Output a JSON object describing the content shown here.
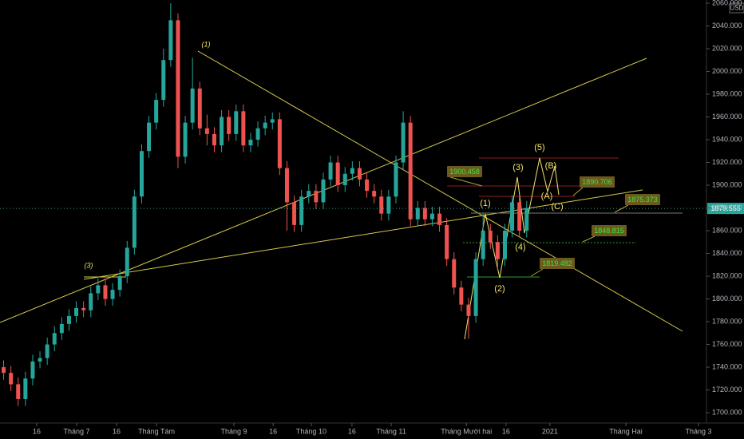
{
  "chart_data": {
    "type": "candlestick",
    "currency": "USD",
    "up_color": "#26a69a",
    "down_color": "#ef5350",
    "x": [
      1,
      3,
      5,
      7,
      9,
      11,
      13,
      15,
      17,
      19,
      21,
      23,
      25,
      27,
      29,
      31,
      33,
      35,
      37,
      39,
      41,
      43,
      45,
      47,
      49,
      51,
      53,
      55,
      57,
      59,
      61,
      63,
      65,
      67,
      69,
      71,
      73,
      75,
      77,
      79,
      81,
      83,
      85,
      87,
      89,
      91,
      93,
      95,
      97,
      99,
      101,
      103,
      105,
      107,
      109,
      111,
      113,
      115,
      117,
      119,
      121,
      123,
      125,
      127,
      129,
      131,
      133,
      135,
      137,
      139,
      141,
      143,
      145
    ],
    "open": [
      1740,
      1735,
      1725,
      1712,
      1730,
      1745,
      1748,
      1760,
      1770,
      1778,
      1785,
      1792,
      1790,
      1805,
      1812,
      1800,
      1808,
      1820,
      1845,
      1890,
      1930,
      1955,
      1975,
      2010,
      2045,
      1925,
      1955,
      1985,
      1950,
      1945,
      1935,
      1960,
      1945,
      1965,
      1935,
      1940,
      1950,
      1955,
      1958,
      1915,
      1885,
      1865,
      1890,
      1895,
      1885,
      1905,
      1920,
      1900,
      1910,
      1915,
      1905,
      1895,
      1890,
      1875,
      1890,
      1920,
      1955,
      1870,
      1880,
      1870,
      1875,
      1865,
      1835,
      1810,
      1795,
      1785,
      1835,
      1860,
      1850,
      1835,
      1860,
      1885,
      1860
    ],
    "high": [
      1746,
      1741,
      1731,
      1736,
      1751,
      1754,
      1766,
      1776,
      1784,
      1791,
      1798,
      1798,
      1811,
      1818,
      1818,
      1814,
      1826,
      1851,
      1896,
      1936,
      1961,
      1981,
      2020,
      2060,
      2051,
      1961,
      2012,
      1991,
      1962,
      1951,
      1966,
      1966,
      1971,
      1971,
      1946,
      1956,
      1961,
      1964,
      1964,
      1921,
      1891,
      1896,
      1901,
      1901,
      1911,
      1926,
      1926,
      1916,
      1921,
      1921,
      1911,
      1901,
      1896,
      1896,
      1926,
      1965,
      1961,
      1886,
      1886,
      1881,
      1881,
      1871,
      1841,
      1816,
      1801,
      1841,
      1875,
      1866,
      1856,
      1866,
      1891,
      1891,
      1886
    ],
    "low": [
      1729,
      1719,
      1706,
      1706,
      1724,
      1739,
      1742,
      1754,
      1764,
      1772,
      1779,
      1784,
      1784,
      1799,
      1794,
      1794,
      1802,
      1814,
      1839,
      1884,
      1924,
      1949,
      1969,
      2004,
      1915,
      1919,
      1949,
      1944,
      1935,
      1929,
      1929,
      1939,
      1939,
      1929,
      1929,
      1934,
      1944,
      1949,
      1909,
      1860,
      1859,
      1859,
      1884,
      1879,
      1879,
      1899,
      1894,
      1894,
      1904,
      1899,
      1889,
      1884,
      1869,
      1869,
      1884,
      1914,
      1864,
      1864,
      1864,
      1864,
      1859,
      1829,
      1804,
      1789,
      1765,
      1779,
      1829,
      1844,
      1825,
      1829,
      1854,
      1854,
      1854
    ],
    "close": [
      1735,
      1725,
      1712,
      1730,
      1745,
      1748,
      1760,
      1770,
      1778,
      1785,
      1792,
      1790,
      1805,
      1812,
      1800,
      1808,
      1820,
      1845,
      1890,
      1930,
      1955,
      1975,
      2010,
      2045,
      1925,
      1955,
      1985,
      1950,
      1945,
      1935,
      1960,
      1945,
      1965,
      1935,
      1940,
      1950,
      1955,
      1958,
      1915,
      1885,
      1865,
      1890,
      1895,
      1885,
      1905,
      1920,
      1900,
      1910,
      1915,
      1905,
      1895,
      1890,
      1875,
      1890,
      1920,
      1955,
      1870,
      1880,
      1870,
      1875,
      1865,
      1835,
      1810,
      1795,
      1785,
      1835,
      1860,
      1850,
      1835,
      1860,
      1885,
      1860,
      1880
    ],
    "xlim": [
      0,
      194.5
    ],
    "ylim": [
      1690.9,
      2062.8
    ],
    "xticks": [
      {
        "value": 10.1,
        "label": "16"
      },
      {
        "value": 21.1,
        "label": "Tháng 7"
      },
      {
        "value": 32.1,
        "label": "16"
      },
      {
        "value": 43.1,
        "label": "Tháng Tám"
      },
      {
        "value": 64.4,
        "label": "Tháng 9"
      },
      {
        "value": 75.2,
        "label": "16"
      },
      {
        "value": 85.7,
        "label": "Tháng 10"
      },
      {
        "value": 96.9,
        "label": "16"
      },
      {
        "value": 107.7,
        "label": "Tháng 11"
      },
      {
        "value": 128.4,
        "label": "Tháng Mười hai"
      },
      {
        "value": 139.3,
        "label": "16"
      },
      {
        "value": 151.4,
        "label": "2021"
      },
      {
        "value": 172.3,
        "label": "Tháng Hai"
      },
      {
        "value": 192.3,
        "label": "Tháng 3"
      }
    ],
    "yticks": [
      {
        "value": 1700,
        "label": "1700.000"
      },
      {
        "value": 1720,
        "label": "1720.000"
      },
      {
        "value": 1740,
        "label": "1740.000"
      },
      {
        "value": 1760,
        "label": "1760.000"
      },
      {
        "value": 1780,
        "label": "1780.000"
      },
      {
        "value": 1800,
        "label": "1800.000"
      },
      {
        "value": 1820,
        "label": "1820.000"
      },
      {
        "value": 1840,
        "label": "1840.000"
      },
      {
        "value": 1860,
        "label": "1860.000"
      },
      {
        "value": 1880,
        "label": "1880.000"
      },
      {
        "value": 1900,
        "label": "1900.000"
      },
      {
        "value": 1920,
        "label": "1920.000"
      },
      {
        "value": 1940,
        "label": "1940.000"
      },
      {
        "value": 1960,
        "label": "1960.000"
      },
      {
        "value": 1980,
        "label": "1980.000"
      },
      {
        "value": 2000,
        "label": "2000.000"
      },
      {
        "value": 2020,
        "label": "2020.000"
      },
      {
        "value": 2040,
        "label": "2040.000"
      },
      {
        "value": 2060,
        "label": "2060.000"
      }
    ],
    "price_line": 1879.555,
    "wave_labels": [
      "(1)",
      "(3)",
      "(1)",
      "(2)",
      "(3)",
      "(4)",
      "(5)",
      "(B)",
      "(A)",
      "(C)"
    ],
    "price_labels": [
      "1900.458",
      "1890.706",
      "1875.373",
      "1848.815",
      "1819.482"
    ]
  }
}
